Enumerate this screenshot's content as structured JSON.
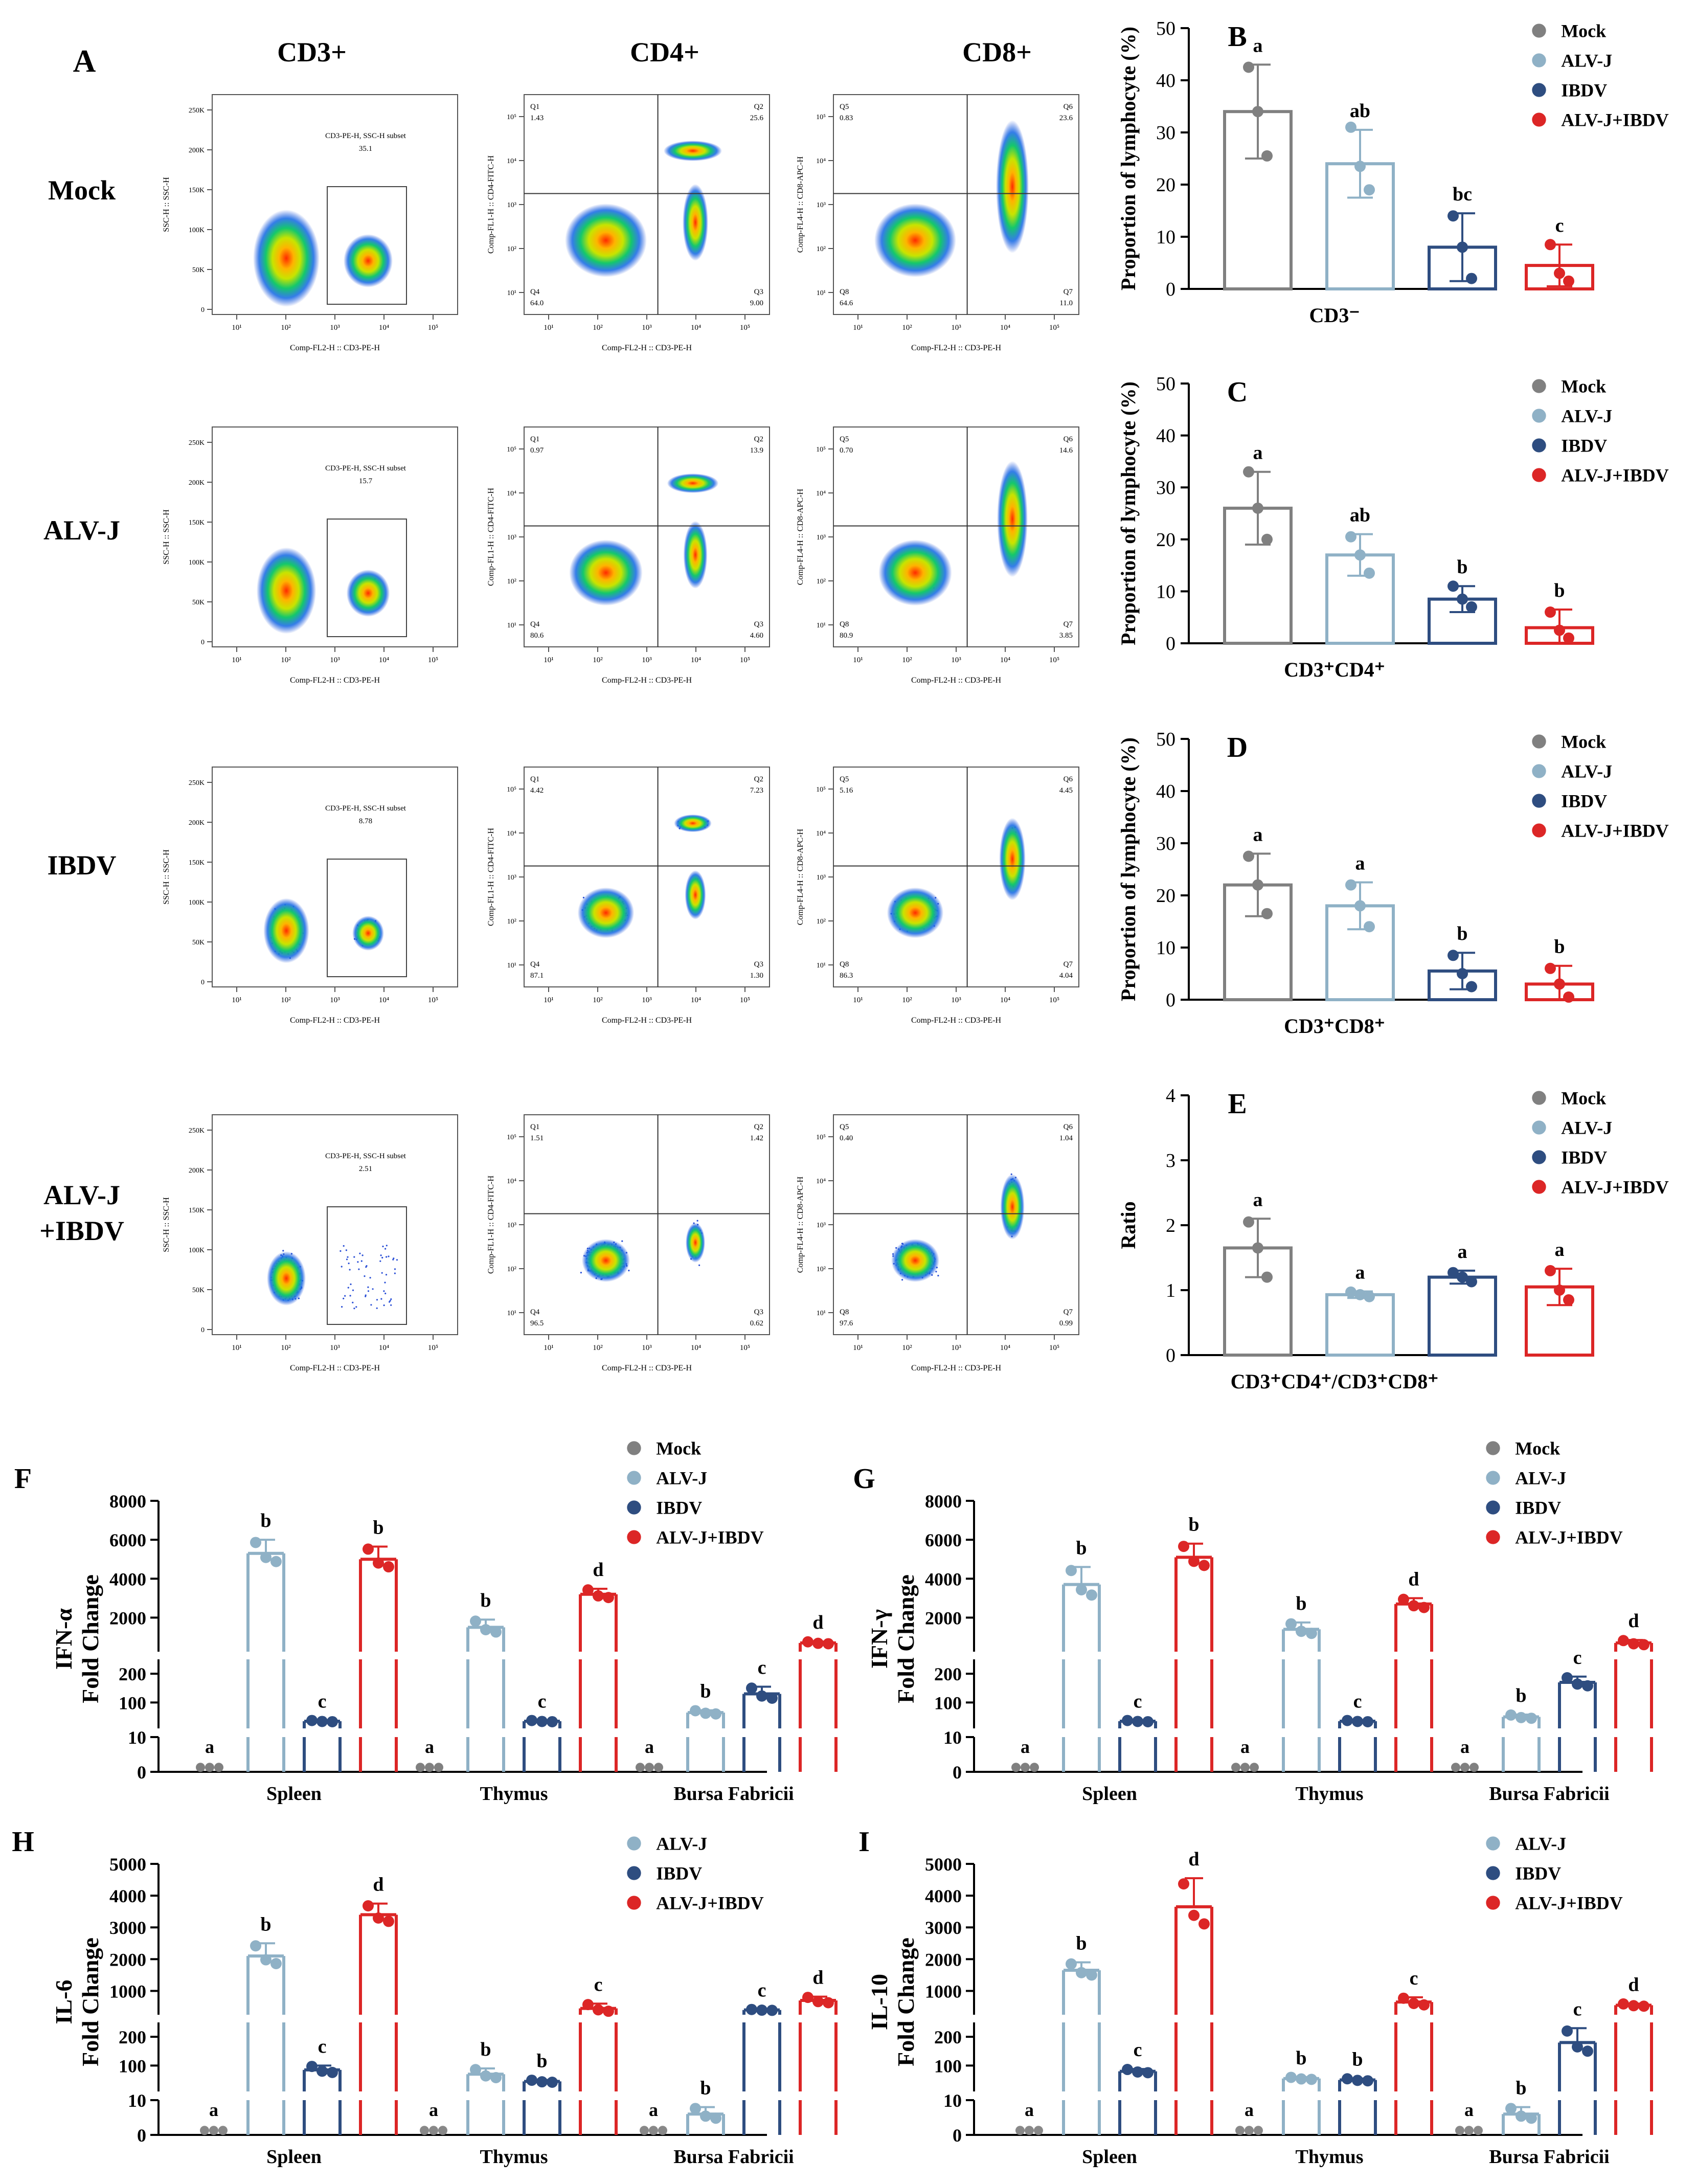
{
  "figure": {
    "panel_a": {
      "letter": "A",
      "columns": [
        "CD3+",
        "CD4+",
        "CD8+"
      ],
      "rows": [
        "Mock",
        "ALV-J",
        "IBDV",
        "ALV-J\n+IBDV"
      ],
      "cd3": [
        {
          "gate": "CD3-PE-H, SSC-H subset",
          "pct": "35.1"
        },
        {
          "gate": "CD3-PE-H, SSC-H subset",
          "pct": "15.7"
        },
        {
          "gate": "CD3-PE-H, SSC-H subset",
          "pct": "8.78"
        },
        {
          "gate": "CD3-PE-H, SSC-H subset",
          "pct": "2.51"
        }
      ],
      "cd4": [
        {
          "q1": "1.43",
          "q2": "25.6",
          "q3": "9.00",
          "q4": "64.0"
        },
        {
          "q1": "0.97",
          "q2": "13.9",
          "q3": "4.60",
          "q4": "80.6"
        },
        {
          "q1": "4.42",
          "q2": "7.23",
          "q3": "1.30",
          "q4": "87.1"
        },
        {
          "q1": "1.51",
          "q2": "1.42",
          "q3": "0.62",
          "q4": "96.5"
        }
      ],
      "cd8": [
        {
          "q5": "0.83",
          "q6": "23.6",
          "q7": "11.0",
          "q8": "64.6"
        },
        {
          "q5": "0.70",
          "q6": "14.6",
          "q7": "3.85",
          "q8": "80.9"
        },
        {
          "q5": "5.16",
          "q6": "4.45",
          "q7": "4.04",
          "q8": "86.3"
        },
        {
          "q5": "0.40",
          "q6": "1.04",
          "q7": "0.99",
          "q8": "97.6"
        }
      ],
      "quad_labels": {
        "q1": "Q1",
        "q2": "Q2",
        "q3": "Q3",
        "q4": "Q4",
        "q5": "Q5",
        "q6": "Q6",
        "q7": "Q7",
        "q8": "Q8"
      },
      "cd3_axes": {
        "x": "Comp-FL2-H :: CD3-PE-H",
        "y": "SSC-H :: SSC-H",
        "yticks": [
          "0",
          "50K",
          "100K",
          "150K",
          "200K",
          "250K"
        ]
      },
      "cd4_axes": {
        "x": "Comp-FL2-H :: CD3-PE-H",
        "y": "Comp-FL1-H :: CD4-FITC-H"
      },
      "cd8_axes": {
        "x": "Comp-FL2-H :: CD3-PE-H",
        "y": "Comp-FL4-H :: CD8-APC-H"
      },
      "log_ticks": [
        "10¹",
        "10²",
        "10³",
        "10⁴",
        "10⁵"
      ]
    },
    "colors": {
      "Mock": "#808080",
      "ALV-J": "#8fb1c6",
      "IBDV": "#2e4d80",
      "ALV-J+IBDV": "#dc2626"
    }
  },
  "chart_data": [
    {
      "panel": "B",
      "type": "bar",
      "title": "",
      "xlabel": "CD3⁻",
      "ylabel": "Proportion of lymphocyte (%)",
      "ylim": [
        0,
        50
      ],
      "yticks": [
        0,
        10,
        20,
        30,
        40,
        50
      ],
      "categories": [
        "Mock",
        "ALV-J",
        "IBDV",
        "ALV-J+IBDV"
      ],
      "values": [
        34,
        24,
        8,
        4.5
      ],
      "errors": [
        9,
        6.5,
        6.5,
        4
      ],
      "points": [
        [
          42.5,
          34,
          25.5
        ],
        [
          31,
          23.5,
          19
        ],
        [
          14,
          8,
          2
        ],
        [
          8.5,
          3,
          1.5
        ]
      ],
      "letters": [
        "a",
        "ab",
        "bc",
        "c"
      ],
      "legend": [
        "Mock",
        "ALV-J",
        "IBDV",
        "ALV-J+IBDV"
      ]
    },
    {
      "panel": "C",
      "type": "bar",
      "title": "",
      "xlabel": "CD3⁺CD4⁺",
      "ylabel": "Proportion of lymphocyte (%)",
      "ylim": [
        0,
        50
      ],
      "yticks": [
        0,
        10,
        20,
        30,
        40,
        50
      ],
      "categories": [
        "Mock",
        "ALV-J",
        "IBDV",
        "ALV-J+IBDV"
      ],
      "values": [
        26,
        17,
        8.5,
        3
      ],
      "errors": [
        7,
        4,
        2.5,
        3.5
      ],
      "points": [
        [
          33,
          26,
          20
        ],
        [
          20.5,
          17,
          13.5
        ],
        [
          11,
          8.5,
          7
        ],
        [
          6,
          2.5,
          1
        ]
      ],
      "letters": [
        "a",
        "ab",
        "b",
        "b"
      ],
      "legend": [
        "Mock",
        "ALV-J",
        "IBDV",
        "ALV-J+IBDV"
      ]
    },
    {
      "panel": "D",
      "type": "bar",
      "title": "",
      "xlabel": "CD3⁺CD8⁺",
      "ylabel": "Proportion of lymphocyte (%)",
      "ylim": [
        0,
        50
      ],
      "yticks": [
        0,
        10,
        20,
        30,
        40,
        50
      ],
      "categories": [
        "Mock",
        "ALV-J",
        "IBDV",
        "ALV-J+IBDV"
      ],
      "values": [
        22,
        18,
        5.5,
        3
      ],
      "errors": [
        6,
        4.5,
        3.5,
        3.5
      ],
      "points": [
        [
          27.5,
          22,
          16.5
        ],
        [
          22,
          18,
          14
        ],
        [
          8.5,
          5,
          2.5
        ],
        [
          6,
          3,
          0.5
        ]
      ],
      "letters": [
        "a",
        "a",
        "b",
        "b"
      ],
      "legend": [
        "Mock",
        "ALV-J",
        "IBDV",
        "ALV-J+IBDV"
      ]
    },
    {
      "panel": "E",
      "type": "bar",
      "title": "",
      "xlabel": "CD3⁺CD4⁺/CD3⁺CD8⁺",
      "ylabel": "Ratio",
      "ylim": [
        0,
        4
      ],
      "yticks": [
        0,
        1,
        2,
        3,
        4
      ],
      "categories": [
        "Mock",
        "ALV-J",
        "IBDV",
        "ALV-J+IBDV"
      ],
      "values": [
        1.65,
        0.93,
        1.2,
        1.05
      ],
      "errors": [
        0.45,
        0.05,
        0.1,
        0.28
      ],
      "points": [
        [
          2.05,
          1.65,
          1.2
        ],
        [
          0.97,
          0.93,
          0.9
        ],
        [
          1.27,
          1.2,
          1.13
        ],
        [
          1.3,
          1.0,
          0.85
        ]
      ],
      "letters": [
        "a",
        "a",
        "a",
        "a"
      ],
      "legend": [
        "Mock",
        "ALV-J",
        "IBDV",
        "ALV-J+IBDV"
      ]
    },
    {
      "panel": "F",
      "type": "bar",
      "title": "",
      "xlabel": "",
      "ylabel": [
        "IFN-α",
        "Fold Change"
      ],
      "segments": [
        {
          "range": [
            0,
            10
          ],
          "ticks": [
            0,
            10
          ]
        },
        {
          "range": [
            10,
            250
          ],
          "ticks": [
            100,
            200
          ]
        },
        {
          "range": [
            250,
            8000
          ],
          "ticks": [
            2000,
            4000,
            6000,
            8000
          ]
        }
      ],
      "groups": [
        "Spleen",
        "Thymus",
        "Bursa Fabricii"
      ],
      "series": [
        {
          "name": "Mock",
          "values": [
            1,
            1,
            1
          ],
          "errors": [
            0,
            0,
            0
          ],
          "letters": [
            "a",
            "a",
            "a"
          ]
        },
        {
          "name": "ALV-J",
          "values": [
            5300,
            1500,
            65
          ],
          "errors": [
            700,
            400,
            8
          ],
          "letters": [
            "b",
            "b",
            "b"
          ]
        },
        {
          "name": "IBDV",
          "values": [
            35,
            35,
            130
          ],
          "errors": [
            3,
            3,
            25
          ],
          "letters": [
            "c",
            "c",
            "c"
          ]
        },
        {
          "name": "ALV-J+IBDV",
          "values": [
            5000,
            3200,
            700
          ],
          "errors": [
            650,
            280,
            70
          ],
          "letters": [
            "b",
            "d",
            "d"
          ]
        }
      ],
      "legend": [
        "Mock",
        "ALV-J",
        "IBDV",
        "ALV-J+IBDV"
      ]
    },
    {
      "panel": "G",
      "type": "bar",
      "title": "",
      "xlabel": "",
      "ylabel": [
        "IFN-γ",
        "Fold Change"
      ],
      "segments": [
        {
          "range": [
            0,
            10
          ],
          "ticks": [
            0,
            10
          ]
        },
        {
          "range": [
            10,
            250
          ],
          "ticks": [
            100,
            200
          ]
        },
        {
          "range": [
            250,
            8000
          ],
          "ticks": [
            2000,
            4000,
            6000,
            8000
          ]
        }
      ],
      "groups": [
        "Spleen",
        "Thymus",
        "Bursa Fabricii"
      ],
      "series": [
        {
          "name": "Mock",
          "values": [
            1,
            1,
            1
          ],
          "errors": [
            0,
            0,
            0
          ],
          "letters": [
            "a",
            "a",
            "a"
          ]
        },
        {
          "name": "ALV-J",
          "values": [
            3700,
            1400,
            50
          ],
          "errors": [
            900,
            350,
            8
          ],
          "letters": [
            "b",
            "b",
            "b"
          ]
        },
        {
          "name": "IBDV",
          "values": [
            35,
            35,
            170
          ],
          "errors": [
            3,
            3,
            20
          ],
          "letters": [
            "c",
            "c",
            "c"
          ]
        },
        {
          "name": "ALV-J+IBDV",
          "values": [
            5100,
            2700,
            700
          ],
          "errors": [
            700,
            300,
            150
          ],
          "letters": [
            "b",
            "d",
            "d"
          ]
        }
      ],
      "legend": [
        "Mock",
        "ALV-J",
        "IBDV",
        "ALV-J+IBDV"
      ]
    },
    {
      "panel": "H",
      "type": "bar",
      "title": "",
      "xlabel": "",
      "ylabel": [
        "IL-6",
        "Fold Change"
      ],
      "segments": [
        {
          "range": [
            0,
            10
          ],
          "ticks": [
            0,
            10
          ]
        },
        {
          "range": [
            10,
            250
          ],
          "ticks": [
            100,
            200
          ]
        },
        {
          "range": [
            250,
            5000
          ],
          "ticks": [
            1000,
            2000,
            3000,
            4000,
            5000
          ]
        }
      ],
      "groups": [
        "Spleen",
        "Thymus",
        "Bursa Fabricii"
      ],
      "series": [
        {
          "name": "ALV-J",
          "values": [
            2100,
            70,
            6
          ],
          "errors": [
            400,
            20,
            2
          ],
          "letters": [
            "b",
            "b",
            "b"
          ]
        },
        {
          "name": "IBDV",
          "values": [
            85,
            45,
            400
          ],
          "errors": [
            15,
            5,
            20
          ],
          "letters": [
            "c",
            "b",
            "c"
          ]
        },
        {
          "name": "ALV-J+IBDV",
          "values": [
            3400,
            450,
            700
          ],
          "errors": [
            350,
            150,
            120
          ],
          "letters": [
            "d",
            "c",
            "d"
          ]
        }
      ],
      "baseline_letters": [
        "a",
        "a",
        "a"
      ],
      "legend": [
        "ALV-J",
        "IBDV",
        "ALV-J+IBDV"
      ]
    },
    {
      "panel": "I",
      "type": "bar",
      "title": "",
      "xlabel": "",
      "ylabel": [
        "IL-10",
        "Fold Change"
      ],
      "segments": [
        {
          "range": [
            0,
            10
          ],
          "ticks": [
            0,
            10
          ]
        },
        {
          "range": [
            10,
            250
          ],
          "ticks": [
            100,
            200
          ]
        },
        {
          "range": [
            250,
            5000
          ],
          "ticks": [
            1000,
            2000,
            3000,
            4000,
            5000
          ]
        }
      ],
      "groups": [
        "Spleen",
        "Thymus",
        "Bursa Fabricii"
      ],
      "series": [
        {
          "name": "ALV-J",
          "values": [
            1650,
            55,
            6
          ],
          "errors": [
            250,
            5,
            2
          ],
          "letters": [
            "b",
            "b",
            "b"
          ]
        },
        {
          "name": "IBDV",
          "values": [
            80,
            50,
            180
          ],
          "errors": [
            8,
            5,
            50
          ],
          "letters": [
            "c",
            "b",
            "c"
          ]
        },
        {
          "name": "ALV-J+IBDV",
          "values": [
            3650,
            650,
            550
          ],
          "errors": [
            900,
            150,
            50
          ],
          "letters": [
            "d",
            "c",
            "d"
          ]
        }
      ],
      "baseline_letters": [
        "a",
        "a",
        "a"
      ],
      "legend": [
        "ALV-J",
        "IBDV",
        "ALV-J+IBDV"
      ]
    }
  ]
}
